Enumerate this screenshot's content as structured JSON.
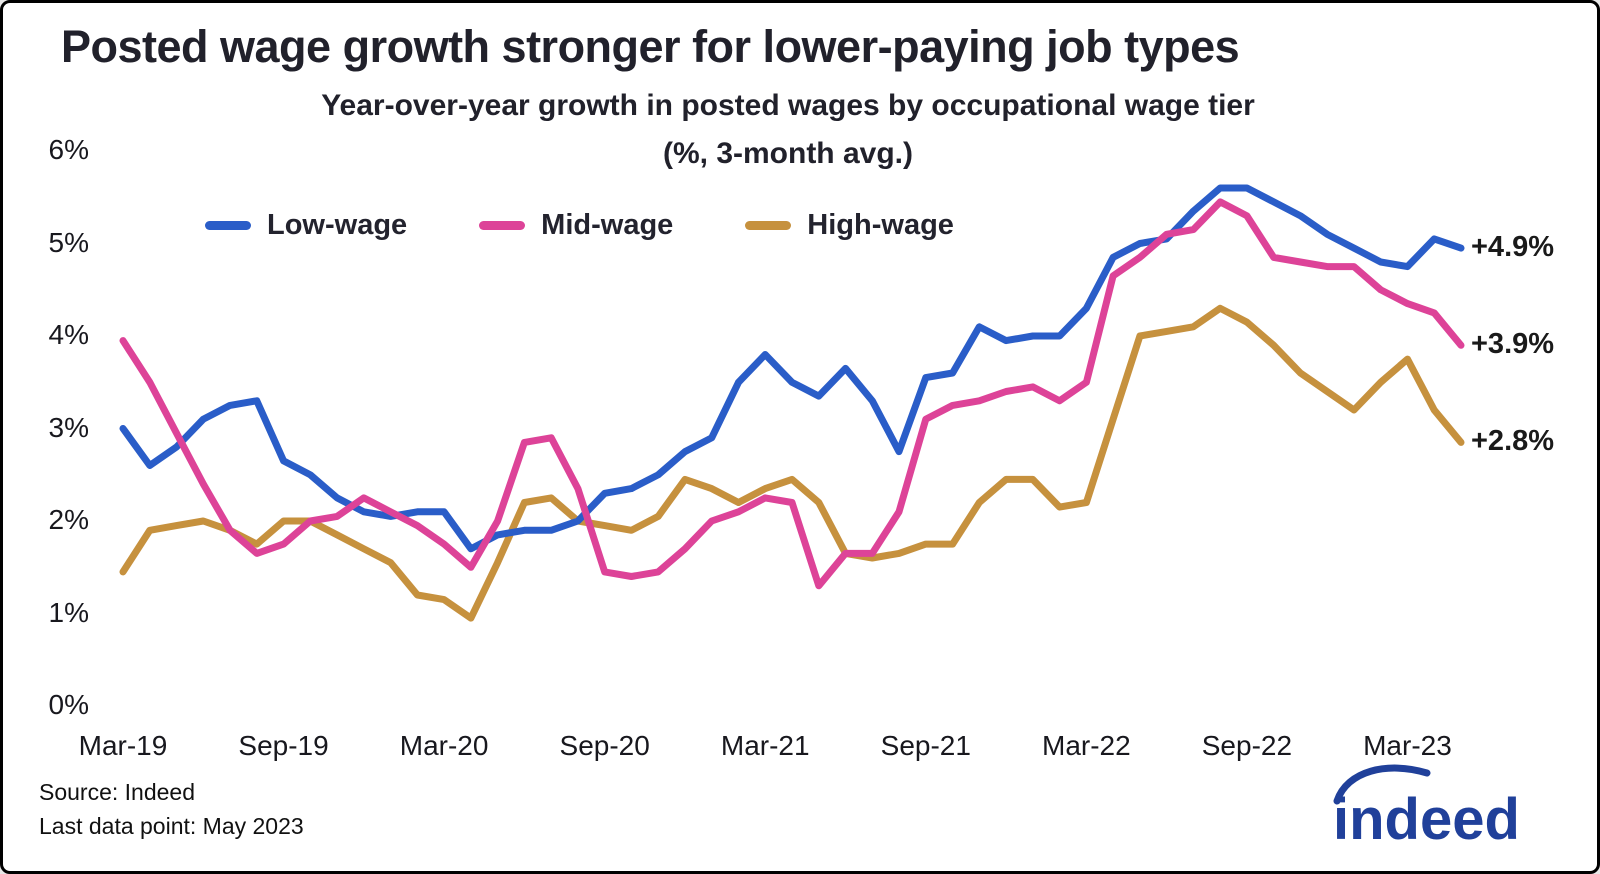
{
  "header": {
    "title": "Posted wage growth stronger for lower-paying job types",
    "subtitle_line1": "Year-over-year growth in posted wages by occupational wage tier",
    "subtitle_line2": "(%, 3-month avg.)"
  },
  "footer": {
    "source": "Source: Indeed",
    "last_data_point": "Last data point: May 2023",
    "logo_text": "indeed",
    "logo_color": "#20409a"
  },
  "chart_data": {
    "type": "line",
    "title": "Posted wage growth stronger for lower-paying job types",
    "subtitle": "Year-over-year growth in posted wages by occupational wage tier (%, 3-month avg.)",
    "grid": false,
    "legend_position": "top",
    "ylim": [
      0,
      6
    ],
    "y_ticks": [
      0,
      1,
      2,
      3,
      4,
      5,
      6
    ],
    "y_tick_suffix": "%",
    "x_tick_labels": [
      "Mar-19",
      "Sep-19",
      "Mar-20",
      "Sep-20",
      "Mar-21",
      "Sep-21",
      "Mar-22",
      "Sep-22",
      "Mar-23"
    ],
    "x": [
      "Mar-19",
      "Apr-19",
      "May-19",
      "Jun-19",
      "Jul-19",
      "Aug-19",
      "Sep-19",
      "Oct-19",
      "Nov-19",
      "Dec-19",
      "Jan-20",
      "Feb-20",
      "Mar-20",
      "Apr-20",
      "May-20",
      "Jun-20",
      "Jul-20",
      "Aug-20",
      "Sep-20",
      "Oct-20",
      "Nov-20",
      "Dec-20",
      "Jan-21",
      "Feb-21",
      "Mar-21",
      "Apr-21",
      "May-21",
      "Jun-21",
      "Jul-21",
      "Aug-21",
      "Sep-21",
      "Oct-21",
      "Nov-21",
      "Dec-21",
      "Jan-22",
      "Feb-22",
      "Mar-22",
      "Apr-22",
      "May-22",
      "Jun-22",
      "Jul-22",
      "Aug-22",
      "Sep-22",
      "Oct-22",
      "Nov-22",
      "Dec-22",
      "Jan-23",
      "Feb-23",
      "Mar-23",
      "Apr-23",
      "May-23"
    ],
    "series": [
      {
        "name": "Low-wage",
        "color": "#2a5dc8",
        "end_label": "+4.9%",
        "values": [
          3.0,
          2.6,
          2.8,
          3.1,
          3.25,
          3.3,
          2.65,
          2.5,
          2.25,
          2.1,
          2.05,
          2.1,
          2.1,
          1.7,
          1.85,
          1.9,
          1.9,
          2.0,
          2.3,
          2.35,
          2.5,
          2.75,
          2.9,
          3.5,
          3.8,
          3.5,
          3.35,
          3.65,
          3.3,
          2.75,
          3.55,
          3.6,
          4.1,
          3.95,
          4.0,
          4.0,
          4.3,
          4.85,
          5.0,
          5.05,
          5.35,
          5.6,
          5.6,
          5.45,
          5.3,
          5.1,
          4.95,
          4.8,
          4.75,
          5.05,
          4.95
        ]
      },
      {
        "name": "Mid-wage",
        "color": "#dd4398",
        "end_label": "+3.9%",
        "values": [
          3.95,
          3.5,
          2.95,
          2.4,
          1.9,
          1.65,
          1.75,
          2.0,
          2.05,
          2.25,
          2.1,
          1.95,
          1.75,
          1.5,
          2.0,
          2.85,
          2.9,
          2.35,
          1.45,
          1.4,
          1.45,
          1.7,
          2.0,
          2.1,
          2.25,
          2.2,
          1.3,
          1.65,
          1.65,
          2.1,
          3.1,
          3.25,
          3.3,
          3.4,
          3.45,
          3.3,
          3.5,
          4.65,
          4.85,
          5.1,
          5.15,
          5.45,
          5.3,
          4.85,
          4.8,
          4.75,
          4.75,
          4.5,
          4.35,
          4.25,
          3.9
        ]
      },
      {
        "name": "High-wage",
        "color": "#c6913e",
        "end_label": "+2.8%",
        "values": [
          1.45,
          1.9,
          1.95,
          2.0,
          1.9,
          1.75,
          2.0,
          2.0,
          1.85,
          1.7,
          1.55,
          1.2,
          1.15,
          0.95,
          1.55,
          2.2,
          2.25,
          2.0,
          1.95,
          1.9,
          2.05,
          2.45,
          2.35,
          2.2,
          2.35,
          2.45,
          2.2,
          1.65,
          1.6,
          1.65,
          1.75,
          1.75,
          2.2,
          2.45,
          2.45,
          2.15,
          2.2,
          3.1,
          4.0,
          4.05,
          4.1,
          4.3,
          4.15,
          3.9,
          3.6,
          3.4,
          3.2,
          3.5,
          3.75,
          3.2,
          2.85
        ]
      }
    ]
  }
}
